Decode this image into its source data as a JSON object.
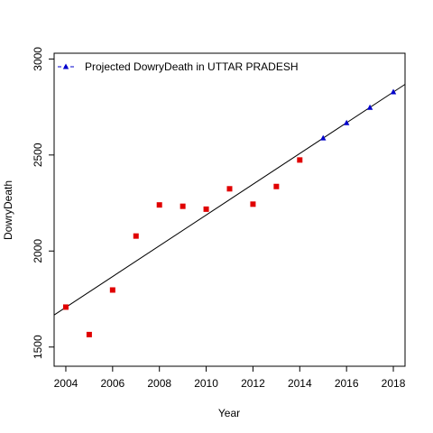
{
  "chart_data": {
    "type": "scatter",
    "title": "",
    "xlabel": "Year",
    "ylabel": "DowryDeath",
    "xlim": [
      2003.5,
      2018.5
    ],
    "ylim": [
      1400,
      3030
    ],
    "x_ticks": [
      "2004",
      "2006",
      "2008",
      "2010",
      "2012",
      "2014",
      "2016",
      "2018"
    ],
    "y_ticks": [
      "1500",
      "2000",
      "2500",
      "3000"
    ],
    "grid": false,
    "legend": {
      "position": "top-left",
      "entries": [
        "Projected  DowryDeath  in  UTTAR PRADESH"
      ]
    },
    "series": [
      {
        "kind": "observed",
        "marker": "square",
        "color": "#e00000",
        "x": [
          2004,
          2005,
          2006,
          2007,
          2008,
          2009,
          2010,
          2011,
          2012,
          2013,
          2014
        ],
        "y": [
          1708,
          1565,
          1797,
          2078,
          2240,
          2233,
          2218,
          2324,
          2244,
          2336,
          2474
        ]
      },
      {
        "name": "Projected  DowryDeath  in  UTTAR PRADESH",
        "marker": "triangle",
        "color": "#0000cc",
        "x": [
          2015,
          2016,
          2017,
          2018
        ],
        "y": [
          2588,
          2667,
          2747,
          2828
        ]
      },
      {
        "kind": "trend",
        "color": "#000000",
        "x": [
          2003.5,
          2018.5
        ],
        "y": [
          1667,
          2868
        ]
      }
    ]
  }
}
